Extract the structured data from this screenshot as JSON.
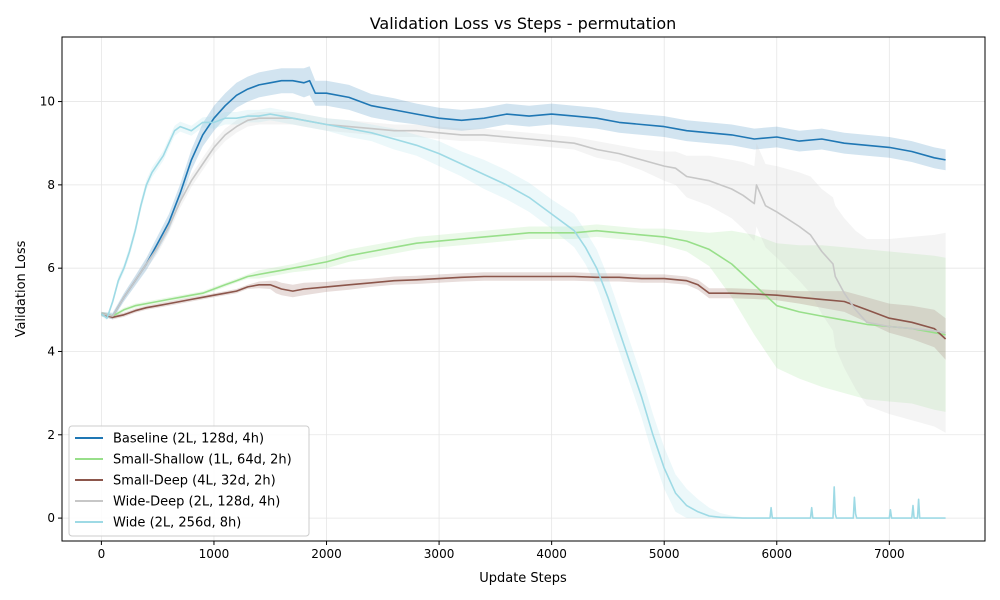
{
  "chart_data": {
    "type": "line",
    "title": "Validation Loss vs Steps - permutation",
    "xlabel": "Update Steps",
    "ylabel": "Validation Loss",
    "xlim": [
      -350,
      7850
    ],
    "ylim": [
      -0.55,
      11.55
    ],
    "xticks": [
      0,
      1000,
      2000,
      3000,
      4000,
      5000,
      6000,
      7000
    ],
    "yticks": [
      0,
      2,
      4,
      6,
      8,
      10
    ],
    "grid": true,
    "legend_position": "lower-left",
    "series": [
      {
        "name": "Baseline (2L, 128d, 4h)",
        "color": "#1f77b4",
        "x": [
          0,
          100,
          200,
          300,
          400,
          500,
          600,
          700,
          800,
          900,
          1000,
          1100,
          1200,
          1300,
          1400,
          1500,
          1600,
          1700,
          1800,
          1850,
          1900,
          2000,
          2200,
          2400,
          2600,
          2800,
          3000,
          3200,
          3400,
          3600,
          3800,
          4000,
          4200,
          4400,
          4600,
          4800,
          5000,
          5200,
          5400,
          5600,
          5800,
          6000,
          6200,
          6400,
          6600,
          6800,
          7000,
          7200,
          7400,
          7500
        ],
        "y": [
          4.9,
          4.85,
          5.3,
          5.7,
          6.1,
          6.6,
          7.1,
          7.8,
          8.6,
          9.2,
          9.6,
          9.9,
          10.15,
          10.3,
          10.4,
          10.45,
          10.5,
          10.5,
          10.45,
          10.5,
          10.2,
          10.2,
          10.1,
          9.9,
          9.8,
          9.7,
          9.6,
          9.55,
          9.6,
          9.7,
          9.65,
          9.7,
          9.65,
          9.6,
          9.5,
          9.45,
          9.4,
          9.3,
          9.25,
          9.2,
          9.1,
          9.15,
          9.05,
          9.1,
          9.0,
          8.95,
          8.9,
          8.8,
          8.65,
          8.6
        ],
        "band": [
          0.05,
          0.08,
          0.1,
          0.12,
          0.15,
          0.18,
          0.2,
          0.22,
          0.25,
          0.28,
          0.3,
          0.3,
          0.3,
          0.3,
          0.3,
          0.3,
          0.3,
          0.3,
          0.35,
          0.35,
          0.3,
          0.3,
          0.3,
          0.28,
          0.28,
          0.25,
          0.25,
          0.25,
          0.25,
          0.25,
          0.25,
          0.25,
          0.25,
          0.25,
          0.25,
          0.25,
          0.25,
          0.25,
          0.25,
          0.25,
          0.25,
          0.25,
          0.25,
          0.25,
          0.25,
          0.25,
          0.25,
          0.25,
          0.25,
          0.25
        ]
      },
      {
        "name": "Small-Shallow (1L, 64d, 2h)",
        "color": "#98df8a",
        "x": [
          0,
          100,
          200,
          300,
          400,
          500,
          600,
          700,
          800,
          900,
          1000,
          1100,
          1200,
          1300,
          1400,
          1500,
          1600,
          1700,
          1800,
          2000,
          2200,
          2400,
          2600,
          2800,
          3000,
          3200,
          3400,
          3600,
          3800,
          4000,
          4200,
          4400,
          4600,
          4800,
          5000,
          5200,
          5400,
          5600,
          5800,
          6000,
          6200,
          6400,
          6600,
          6800,
          7000,
          7200,
          7400,
          7500
        ],
        "y": [
          4.9,
          4.85,
          5.0,
          5.1,
          5.15,
          5.2,
          5.25,
          5.3,
          5.35,
          5.4,
          5.5,
          5.6,
          5.7,
          5.8,
          5.85,
          5.9,
          5.95,
          6.0,
          6.05,
          6.15,
          6.3,
          6.4,
          6.5,
          6.6,
          6.65,
          6.7,
          6.75,
          6.8,
          6.85,
          6.85,
          6.85,
          6.9,
          6.85,
          6.8,
          6.75,
          6.65,
          6.45,
          6.1,
          5.6,
          5.1,
          4.95,
          4.85,
          4.75,
          4.65,
          4.6,
          4.55,
          4.45,
          4.4
        ],
        "band": [
          0.05,
          0.05,
          0.05,
          0.05,
          0.05,
          0.05,
          0.05,
          0.05,
          0.05,
          0.05,
          0.05,
          0.05,
          0.05,
          0.05,
          0.1,
          0.1,
          0.1,
          0.1,
          0.12,
          0.15,
          0.15,
          0.15,
          0.15,
          0.15,
          0.15,
          0.15,
          0.15,
          0.15,
          0.15,
          0.15,
          0.15,
          0.15,
          0.15,
          0.15,
          0.2,
          0.25,
          0.4,
          0.8,
          1.2,
          1.5,
          1.6,
          1.7,
          1.75,
          1.8,
          1.8,
          1.8,
          1.85,
          1.85
        ]
      },
      {
        "name": "Small-Deep (4L, 32d, 2h)",
        "color": "#8c564b",
        "x": [
          0,
          100,
          200,
          300,
          400,
          500,
          600,
          700,
          800,
          900,
          1000,
          1100,
          1200,
          1300,
          1400,
          1500,
          1550,
          1600,
          1700,
          1800,
          2000,
          2200,
          2400,
          2600,
          2800,
          3000,
          3200,
          3400,
          3600,
          3800,
          4000,
          4200,
          4400,
          4600,
          4800,
          5000,
          5200,
          5300,
          5350,
          5400,
          5600,
          5800,
          6000,
          6200,
          6400,
          6600,
          6800,
          7000,
          7200,
          7400,
          7500
        ],
        "y": [
          4.9,
          4.82,
          4.88,
          4.98,
          5.05,
          5.1,
          5.15,
          5.2,
          5.25,
          5.3,
          5.35,
          5.4,
          5.45,
          5.55,
          5.6,
          5.6,
          5.55,
          5.5,
          5.45,
          5.5,
          5.55,
          5.6,
          5.65,
          5.7,
          5.72,
          5.75,
          5.78,
          5.8,
          5.8,
          5.8,
          5.8,
          5.8,
          5.78,
          5.78,
          5.75,
          5.75,
          5.7,
          5.6,
          5.5,
          5.4,
          5.4,
          5.38,
          5.35,
          5.3,
          5.25,
          5.2,
          5.0,
          4.8,
          4.7,
          4.55,
          4.3
        ],
        "band": [
          0.05,
          0.05,
          0.05,
          0.05,
          0.05,
          0.05,
          0.05,
          0.05,
          0.05,
          0.05,
          0.05,
          0.05,
          0.05,
          0.05,
          0.08,
          0.1,
          0.15,
          0.15,
          0.15,
          0.15,
          0.12,
          0.12,
          0.1,
          0.1,
          0.1,
          0.1,
          0.1,
          0.1,
          0.1,
          0.1,
          0.1,
          0.1,
          0.1,
          0.1,
          0.1,
          0.1,
          0.1,
          0.12,
          0.12,
          0.12,
          0.12,
          0.12,
          0.12,
          0.15,
          0.2,
          0.25,
          0.3,
          0.35,
          0.4,
          0.45,
          0.5
        ]
      },
      {
        "name": "Wide-Deep (2L, 128d, 4h)",
        "color": "#c7c7c7",
        "x": [
          0,
          100,
          200,
          300,
          400,
          500,
          600,
          700,
          800,
          900,
          1000,
          1100,
          1200,
          1300,
          1400,
          1500,
          1600,
          1700,
          1800,
          2000,
          2200,
          2400,
          2600,
          2800,
          3000,
          3200,
          3400,
          3600,
          3800,
          4000,
          4200,
          4400,
          4600,
          4800,
          5000,
          5100,
          5200,
          5400,
          5600,
          5700,
          5800,
          5820,
          5900,
          6000,
          6200,
          6300,
          6400,
          6500,
          6520,
          6600,
          6700,
          6800,
          7000,
          7200,
          7400,
          7500
        ],
        "y": [
          4.9,
          4.85,
          5.3,
          5.7,
          6.1,
          6.5,
          7.0,
          7.6,
          8.1,
          8.5,
          8.9,
          9.2,
          9.4,
          9.55,
          9.6,
          9.6,
          9.6,
          9.6,
          9.55,
          9.45,
          9.4,
          9.35,
          9.3,
          9.3,
          9.25,
          9.2,
          9.2,
          9.15,
          9.1,
          9.05,
          9.0,
          8.85,
          8.75,
          8.6,
          8.45,
          8.4,
          8.2,
          8.1,
          7.9,
          7.75,
          7.55,
          8.0,
          7.5,
          7.35,
          7.0,
          6.8,
          6.4,
          6.1,
          5.8,
          5.4,
          5.0,
          4.7,
          4.6,
          4.55,
          4.5,
          4.45
        ],
        "band": [
          0.05,
          0.05,
          0.08,
          0.1,
          0.12,
          0.15,
          0.15,
          0.15,
          0.15,
          0.15,
          0.15,
          0.15,
          0.15,
          0.15,
          0.15,
          0.15,
          0.15,
          0.15,
          0.15,
          0.15,
          0.15,
          0.15,
          0.15,
          0.15,
          0.15,
          0.15,
          0.15,
          0.15,
          0.15,
          0.15,
          0.15,
          0.2,
          0.2,
          0.25,
          0.35,
          0.4,
          0.5,
          0.6,
          0.7,
          0.8,
          0.9,
          1.0,
          1.0,
          1.1,
          1.3,
          1.4,
          1.5,
          1.6,
          1.7,
          1.8,
          1.9,
          2.0,
          2.1,
          2.2,
          2.3,
          2.4
        ]
      },
      {
        "name": "Wide (2L, 256d, 8h)",
        "color": "#9edae5",
        "x": [
          0,
          50,
          100,
          150,
          200,
          250,
          300,
          350,
          400,
          450,
          500,
          550,
          600,
          650,
          700,
          800,
          900,
          1000,
          1100,
          1200,
          1300,
          1400,
          1500,
          1600,
          1800,
          2000,
          2200,
          2400,
          2600,
          2800,
          3000,
          3200,
          3400,
          3600,
          3800,
          4000,
          4200,
          4300,
          4400,
          4500,
          4600,
          4700,
          4800,
          4900,
          5000,
          5100,
          5200,
          5300,
          5400,
          5500,
          5600,
          5700,
          5900,
          5940,
          5950,
          5960,
          6000,
          6300,
          6310,
          6320,
          6500,
          6510,
          6520,
          6530,
          6680,
          6690,
          6700,
          6710,
          7000,
          7010,
          7020,
          7200,
          7210,
          7220,
          7250,
          7260,
          7270,
          7500
        ],
        "y": [
          4.9,
          4.8,
          5.2,
          5.7,
          6.0,
          6.4,
          6.9,
          7.5,
          8.0,
          8.3,
          8.5,
          8.7,
          9.0,
          9.3,
          9.4,
          9.3,
          9.5,
          9.5,
          9.6,
          9.6,
          9.65,
          9.65,
          9.7,
          9.65,
          9.55,
          9.45,
          9.35,
          9.25,
          9.1,
          8.95,
          8.75,
          8.5,
          8.25,
          8.0,
          7.7,
          7.3,
          6.9,
          6.5,
          6.0,
          5.3,
          4.5,
          3.7,
          2.9,
          2.0,
          1.2,
          0.6,
          0.3,
          0.15,
          0.05,
          0.02,
          0.01,
          0.0,
          0.0,
          0.0,
          0.25,
          0.0,
          0.0,
          0.0,
          0.25,
          0.0,
          0.0,
          0.75,
          0.1,
          0.0,
          0.0,
          0.5,
          0.1,
          0.0,
          0.0,
          0.2,
          0.0,
          0.0,
          0.3,
          0.0,
          0.0,
          0.45,
          0.0,
          0.0
        ],
        "band": [
          0.05,
          0.05,
          0.08,
          0.1,
          0.1,
          0.12,
          0.12,
          0.12,
          0.12,
          0.12,
          0.12,
          0.12,
          0.12,
          0.12,
          0.12,
          0.12,
          0.12,
          0.15,
          0.15,
          0.15,
          0.15,
          0.15,
          0.15,
          0.15,
          0.15,
          0.15,
          0.2,
          0.2,
          0.25,
          0.25,
          0.3,
          0.3,
          0.35,
          0.35,
          0.35,
          0.35,
          0.4,
          0.4,
          0.45,
          0.5,
          0.5,
          0.5,
          0.5,
          0.5,
          0.5,
          0.45,
          0.4,
          0.3,
          0.2,
          0.1,
          0.05,
          0.02,
          0.0,
          0.0,
          0.0,
          0.0,
          0.0,
          0.0,
          0.0,
          0.0,
          0.0,
          0.0,
          0.0,
          0.0,
          0.0,
          0.0,
          0.0,
          0.0,
          0.0,
          0.0,
          0.0,
          0.0,
          0.0,
          0.0,
          0.0,
          0.0,
          0.0,
          0.0
        ]
      }
    ]
  }
}
